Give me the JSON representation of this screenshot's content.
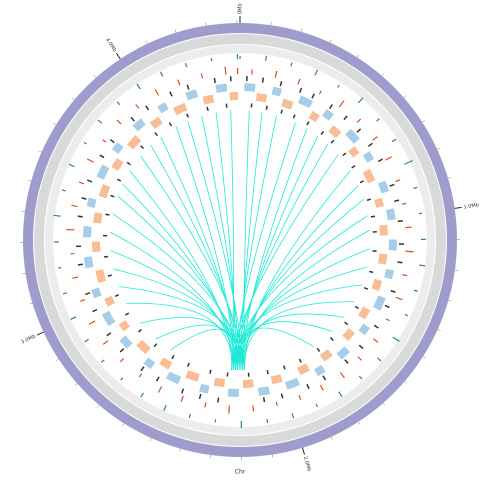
{
  "chart_data": {
    "type": "circos",
    "label": "Chr",
    "xlim": [
      0,
      4.41
    ],
    "xticks": [
      {
        "value": 0,
        "label": "0Mb"
      },
      {
        "value": 1,
        "label": "1.0Mb"
      },
      {
        "value": 2,
        "label": "2.0Mb"
      },
      {
        "value": 3,
        "label": "3.0Mb"
      },
      {
        "value": 4,
        "label": "4.0Mb"
      }
    ],
    "xticks_minor": [
      0.1,
      0.2,
      0.3,
      0.4,
      0.5,
      0.6,
      0.7,
      0.8,
      0.9,
      1.1,
      1.2,
      1.3,
      1.4,
      1.5,
      1.6,
      1.7,
      1.8,
      1.9,
      2.1,
      2.2,
      2.3,
      2.4,
      2.5,
      2.6,
      2.7,
      2.8,
      2.9,
      3.1,
      3.2,
      3.3,
      3.4,
      3.5,
      3.6,
      3.7,
      3.8,
      3.9,
      4.1,
      4.2,
      4.3,
      4.4
    ],
    "ideogram_color": "#9e9ccc",
    "histograms": [
      {
        "color": "#2e8b57",
        "ylim": [
          0,
          1
        ],
        "x": [
          0.0,
          0.1,
          0.2,
          0.3,
          0.4,
          0.5,
          0.6,
          0.7,
          0.8,
          0.9,
          1.0,
          1.1,
          1.2,
          1.3,
          1.4,
          1.5,
          1.6,
          1.7,
          1.8,
          1.9,
          2.0,
          2.1,
          2.2,
          2.3,
          2.4,
          2.5,
          2.6,
          2.7,
          2.8,
          2.9,
          3.0,
          3.1,
          3.2,
          3.3,
          3.4,
          3.5,
          3.6,
          3.7,
          3.8,
          3.9,
          4.0,
          4.1,
          4.2,
          4.3,
          4.4
        ],
        "values": [
          0.3,
          0.5,
          0.4,
          0.6,
          0.3,
          0.7,
          0.4,
          0.5,
          0.9,
          0.4,
          0.3,
          0.5,
          0.6,
          0.4,
          0.3,
          0.8,
          0.5,
          0.4,
          0.6,
          0.3,
          0.5,
          0.4,
          0.7,
          0.3,
          0.4,
          0.6,
          0.5,
          0.3,
          0.4,
          0.5,
          0.6,
          0.4,
          0.3,
          0.5,
          0.7,
          0.4,
          0.6,
          0.3,
          0.5,
          0.4,
          0.6,
          0.5,
          0.4,
          0.3,
          0.5
        ]
      },
      {
        "color": "#d2501e",
        "ylim": [
          0,
          1
        ],
        "x": [
          0.05,
          0.15,
          0.25,
          0.35,
          0.45,
          0.55,
          0.65,
          0.75,
          0.85,
          0.95,
          1.05,
          1.15,
          1.25,
          1.35,
          1.45,
          1.55,
          1.65,
          1.75,
          1.85,
          1.95,
          2.05,
          2.15,
          2.25,
          2.35,
          2.45,
          2.55,
          2.65,
          2.75,
          2.85,
          2.95,
          3.05,
          3.15,
          3.25,
          3.35,
          3.45,
          3.55,
          3.65,
          3.75,
          3.85,
          3.95,
          4.05,
          4.15,
          4.25,
          4.35,
          4.4
        ],
        "values": [
          0.5,
          0.7,
          0.6,
          0.4,
          0.8,
          0.5,
          0.6,
          0.7,
          0.5,
          0.4,
          0.6,
          0.8,
          0.5,
          0.7,
          0.4,
          0.6,
          0.5,
          0.7,
          0.6,
          0.5,
          0.4,
          0.6,
          0.8,
          0.5,
          0.6,
          0.7,
          0.4,
          0.5,
          0.6,
          0.7,
          0.5,
          0.6,
          0.4,
          0.8,
          0.6,
          0.5,
          0.7,
          0.4,
          0.6,
          0.5,
          0.7,
          0.6,
          0.5,
          0.8,
          0.6
        ]
      }
    ],
    "features": [
      {
        "color": "#333333",
        "x": [
          0.03,
          0.1,
          0.18,
          0.27,
          0.33,
          0.42,
          0.5,
          0.58,
          0.66,
          0.74,
          0.86,
          0.93,
          1.02,
          1.12,
          1.2,
          1.33,
          1.4,
          1.5,
          1.61,
          1.7,
          1.82,
          1.9,
          2.02,
          2.1,
          2.3,
          2.38,
          2.46,
          2.58,
          2.66,
          2.78,
          2.87,
          2.99,
          3.07,
          3.2,
          3.28,
          3.41,
          3.49,
          3.57,
          3.69,
          3.77,
          3.9,
          3.98,
          4.1,
          4.18,
          4.3,
          4.37
        ]
      },
      {
        "color": "#a8cde8",
        "intervals": [
          [
            0.02,
            0.07
          ],
          [
            0.15,
            0.19
          ],
          [
            0.28,
            0.34
          ],
          [
            0.41,
            0.45
          ],
          [
            0.55,
            0.61
          ],
          [
            0.68,
            0.72
          ],
          [
            0.83,
            0.88
          ],
          [
            0.96,
            1.01
          ],
          [
            1.1,
            1.15
          ],
          [
            1.24,
            1.28
          ],
          [
            1.37,
            1.43
          ],
          [
            1.52,
            1.56
          ],
          [
            1.66,
            1.71
          ],
          [
            1.8,
            1.84
          ],
          [
            1.93,
            1.99
          ],
          [
            2.07,
            2.12
          ],
          [
            2.21,
            2.26
          ],
          [
            2.35,
            2.39
          ],
          [
            2.49,
            2.55
          ],
          [
            2.63,
            2.67
          ],
          [
            2.77,
            2.82
          ],
          [
            2.9,
            2.96
          ],
          [
            3.04,
            3.08
          ],
          [
            3.18,
            3.23
          ],
          [
            3.32,
            3.37
          ],
          [
            3.46,
            3.5
          ],
          [
            3.6,
            3.66
          ],
          [
            3.74,
            3.78
          ],
          [
            3.88,
            3.93
          ],
          [
            4.02,
            4.06
          ],
          [
            4.16,
            4.21
          ],
          [
            4.3,
            4.35
          ]
        ]
      },
      {
        "color": "#f9bd95",
        "intervals": [
          [
            0.08,
            0.13
          ],
          [
            0.21,
            0.26
          ],
          [
            0.36,
            0.4
          ],
          [
            0.48,
            0.53
          ],
          [
            0.62,
            0.66
          ],
          [
            0.75,
            0.81
          ],
          [
            0.9,
            0.94
          ],
          [
            1.03,
            1.08
          ],
          [
            1.17,
            1.22
          ],
          [
            1.3,
            1.35
          ],
          [
            1.45,
            1.5
          ],
          [
            1.58,
            1.63
          ],
          [
            1.73,
            1.78
          ],
          [
            1.86,
            1.91
          ],
          [
            2.0,
            2.05
          ],
          [
            2.14,
            2.19
          ],
          [
            2.28,
            2.33
          ],
          [
            2.41,
            2.47
          ],
          [
            2.56,
            2.61
          ],
          [
            2.69,
            2.75
          ],
          [
            2.84,
            2.88
          ],
          [
            2.98,
            3.02
          ],
          [
            3.1,
            3.16
          ],
          [
            3.25,
            3.3
          ],
          [
            3.39,
            3.44
          ],
          [
            3.52,
            3.58
          ],
          [
            3.67,
            3.72
          ],
          [
            3.8,
            3.86
          ],
          [
            3.95,
            4.0
          ],
          [
            4.08,
            4.14
          ],
          [
            4.23,
            4.28
          ],
          [
            4.36,
            4.4
          ]
        ]
      },
      {
        "color": "#333333",
        "x": [
          0.06,
          0.14,
          0.22,
          0.29,
          0.37,
          0.46,
          0.53,
          0.62,
          0.7,
          0.79,
          0.89,
          0.98,
          1.06,
          1.16,
          1.27,
          1.36,
          1.47,
          1.57,
          1.68,
          1.77,
          1.88,
          1.97,
          2.06,
          2.16,
          2.27,
          2.36,
          2.48,
          2.57,
          2.68,
          2.79,
          2.9,
          3.01,
          3.12,
          3.22,
          3.33,
          3.44,
          3.54,
          3.63,
          3.73,
          3.84,
          3.94,
          4.03,
          4.13,
          4.24,
          4.34
        ]
      }
    ],
    "links": {
      "color": "#1de9d6",
      "sources": [
        0.05,
        0.12,
        0.2,
        0.31,
        0.38,
        0.45,
        0.52,
        0.6,
        0.71,
        0.8,
        0.88,
        0.97,
        1.05,
        1.15,
        1.25,
        1.35,
        1.45,
        1.55,
        1.65,
        1.78,
        2.6,
        2.7,
        2.82,
        2.95,
        3.05,
        3.15,
        3.25,
        3.35,
        3.45,
        3.55,
        3.62,
        3.7,
        3.8,
        3.88,
        3.95,
        4.05,
        4.12,
        4.2,
        4.28,
        4.36
      ],
      "targets": [
        2.18,
        2.2,
        2.22,
        2.24,
        2.19,
        2.21,
        2.23,
        2.25,
        2.18,
        2.2,
        2.22,
        2.24,
        2.19,
        2.21,
        2.23,
        2.25,
        2.18,
        2.2,
        2.22,
        2.24,
        2.19,
        2.21,
        2.23,
        2.25,
        2.18,
        2.2,
        2.22,
        2.24,
        2.19,
        2.21,
        2.23,
        2.25,
        2.18,
        2.2,
        2.22,
        2.24,
        2.19,
        2.21,
        2.23,
        2.25
      ]
    }
  }
}
